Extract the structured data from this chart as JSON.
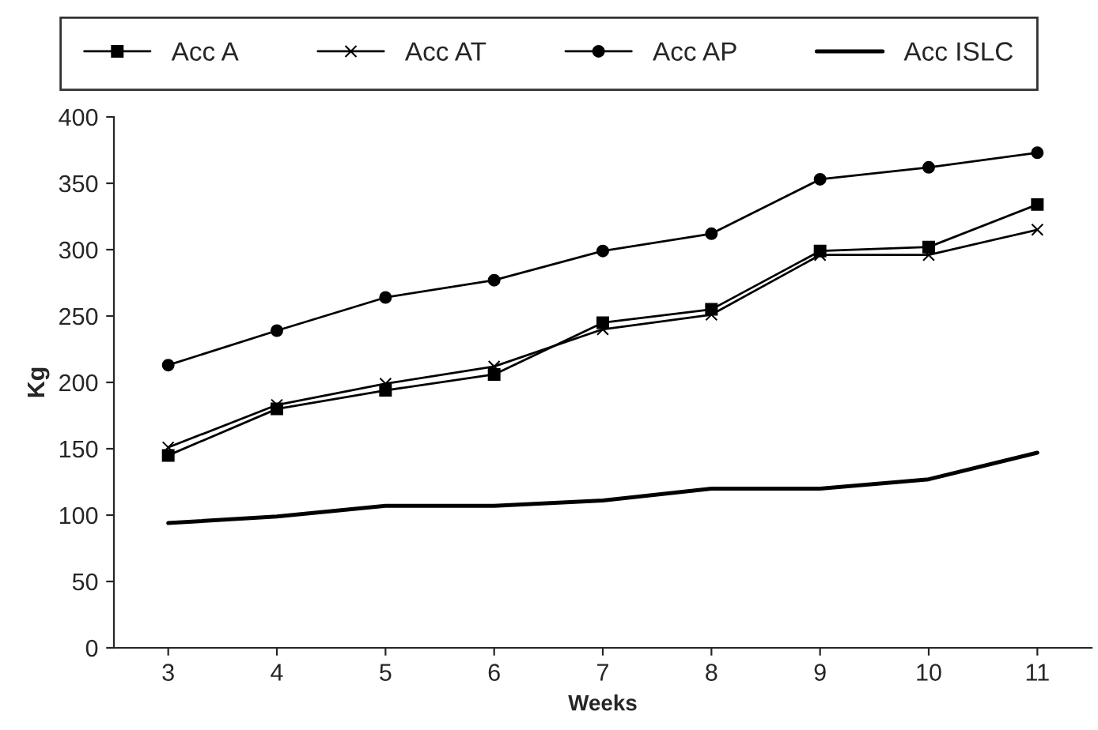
{
  "chart_data": {
    "type": "line",
    "xlabel": "Weeks",
    "ylabel": "Kg",
    "categories": [
      "3",
      "4",
      "5",
      "6",
      "7",
      "8",
      "9",
      "10",
      "11"
    ],
    "ylim": [
      0,
      400
    ],
    "yticks": [
      0,
      50,
      100,
      150,
      200,
      250,
      300,
      350,
      400
    ],
    "grid": false,
    "legend": "top",
    "line_style": "solid",
    "series": [
      {
        "name": "Acc A",
        "color": "#000000",
        "marker": "square",
        "values": [
          145,
          180,
          194,
          206,
          245,
          255,
          299,
          302,
          334
        ]
      },
      {
        "name": "Acc AT",
        "color": "#000000",
        "marker": "cross",
        "values": [
          151,
          183,
          199,
          212,
          240,
          251,
          296,
          296,
          315
        ]
      },
      {
        "name": "Acc AP",
        "color": "#000000",
        "marker": "circle",
        "values": [
          213,
          239,
          264,
          277,
          299,
          312,
          353,
          362,
          373
        ]
      },
      {
        "name": "Acc ISLC",
        "color": "#000000",
        "marker": "none",
        "values": [
          94,
          99,
          107,
          107,
          111,
          120,
          120,
          127,
          147
        ]
      }
    ]
  }
}
